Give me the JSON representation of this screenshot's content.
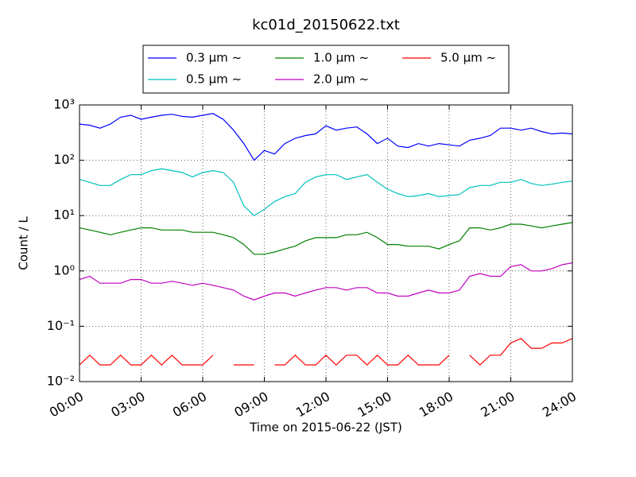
{
  "chart_data": {
    "type": "line",
    "title": "kc01d_20150622.txt",
    "xlabel": "Time on 2015-06-22 (JST)",
    "ylabel": "Count / L",
    "log_y": true,
    "grid": true,
    "legend": "upper center",
    "xlim": [
      0,
      24
    ],
    "xticks": [
      {
        "value": 0,
        "label": "00:00"
      },
      {
        "value": 3,
        "label": "03:00"
      },
      {
        "value": 6,
        "label": "06:00"
      },
      {
        "value": 9,
        "label": "09:00"
      },
      {
        "value": 12,
        "label": "12:00"
      },
      {
        "value": 15,
        "label": "15:00"
      },
      {
        "value": 18,
        "label": "18:00"
      },
      {
        "value": 21,
        "label": "21:00"
      },
      {
        "value": 24,
        "label": "24:00"
      }
    ],
    "ylim": [
      0.01,
      1000
    ],
    "yticks": [
      {
        "value": 0.01,
        "label": "10⁻²"
      },
      {
        "value": 0.1,
        "label": "10⁻¹"
      },
      {
        "value": 1,
        "label": "10⁰"
      },
      {
        "value": 10,
        "label": "10¹"
      },
      {
        "value": 100,
        "label": "10²"
      },
      {
        "value": 1000,
        "label": "10³"
      }
    ],
    "x": [
      0,
      0.5,
      1,
      1.5,
      2,
      2.5,
      3,
      3.5,
      4,
      4.5,
      5,
      5.5,
      6,
      6.5,
      7,
      7.5,
      8,
      8.5,
      9,
      9.5,
      10,
      10.5,
      11,
      11.5,
      12,
      12.5,
      13,
      13.5,
      14,
      14.5,
      15,
      15.5,
      16,
      16.5,
      17,
      17.5,
      18,
      18.5,
      19,
      19.5,
      20,
      20.5,
      21,
      21.5,
      22,
      22.5,
      23,
      23.5,
      24
    ],
    "series": [
      {
        "name": "0.3 μm ~",
        "color": "#0000ff",
        "values": [
          450,
          430,
          380,
          450,
          600,
          650,
          550,
          600,
          650,
          680,
          620,
          600,
          650,
          700,
          550,
          350,
          200,
          100,
          150,
          130,
          200,
          250,
          280,
          300,
          420,
          350,
          380,
          400,
          300,
          200,
          250,
          180,
          170,
          200,
          180,
          200,
          190,
          180,
          230,
          250,
          280,
          380,
          380,
          350,
          380,
          330,
          300,
          310,
          300
        ]
      },
      {
        "name": "0.5 μm ~",
        "color": "#00bfbf",
        "values": [
          45,
          40,
          35,
          35,
          45,
          55,
          55,
          65,
          70,
          65,
          60,
          50,
          60,
          65,
          60,
          40,
          15,
          10,
          13,
          18,
          22,
          25,
          40,
          50,
          55,
          55,
          45,
          50,
          55,
          40,
          30,
          25,
          22,
          23,
          25,
          22,
          23,
          24,
          32,
          35,
          35,
          40,
          40,
          45,
          38,
          35,
          37,
          40,
          42
        ]
      },
      {
        "name": "1.0 μm ~",
        "color": "#008000",
        "values": [
          6,
          5.5,
          5,
          4.5,
          5,
          5.5,
          6,
          6,
          5.5,
          5.5,
          5.5,
          5,
          5,
          5,
          4.5,
          4,
          3,
          2,
          2,
          2.2,
          2.5,
          2.8,
          3.5,
          4,
          4,
          4,
          4.5,
          4.5,
          5,
          4,
          3,
          3,
          2.8,
          2.8,
          2.8,
          2.5,
          3,
          3.5,
          6,
          6,
          5.5,
          6,
          7,
          7,
          6.5,
          6,
          6.5,
          7,
          7.5
        ]
      },
      {
        "name": "2.0 μm ~",
        "color": "#bf00bf",
        "values": [
          0.7,
          0.8,
          0.6,
          0.6,
          0.6,
          0.7,
          0.7,
          0.6,
          0.6,
          0.65,
          0.6,
          0.55,
          0.6,
          0.55,
          0.5,
          0.45,
          0.35,
          0.3,
          0.35,
          0.4,
          0.4,
          0.35,
          0.4,
          0.45,
          0.5,
          0.5,
          0.45,
          0.5,
          0.5,
          0.4,
          0.4,
          0.35,
          0.35,
          0.4,
          0.45,
          0.4,
          0.4,
          0.45,
          0.8,
          0.9,
          0.8,
          0.8,
          1.2,
          1.3,
          1,
          1,
          1.1,
          1.3,
          1.4
        ]
      },
      {
        "name": "5.0 μm ~",
        "color": "#ff0000",
        "values": [
          0.02,
          0.03,
          0.02,
          0.02,
          0.03,
          0.02,
          0.02,
          0.03,
          0.02,
          0.03,
          0.02,
          0.02,
          0.02,
          0.03,
          null,
          0.02,
          0.02,
          0.02,
          null,
          0.02,
          0.02,
          0.03,
          0.02,
          0.02,
          0.03,
          0.02,
          0.03,
          0.03,
          0.02,
          0.03,
          0.02,
          0.02,
          0.03,
          0.02,
          0.02,
          0.02,
          0.03,
          null,
          0.03,
          0.02,
          0.03,
          0.03,
          0.05,
          0.06,
          0.04,
          0.04,
          0.05,
          0.05,
          0.06
        ]
      }
    ]
  }
}
